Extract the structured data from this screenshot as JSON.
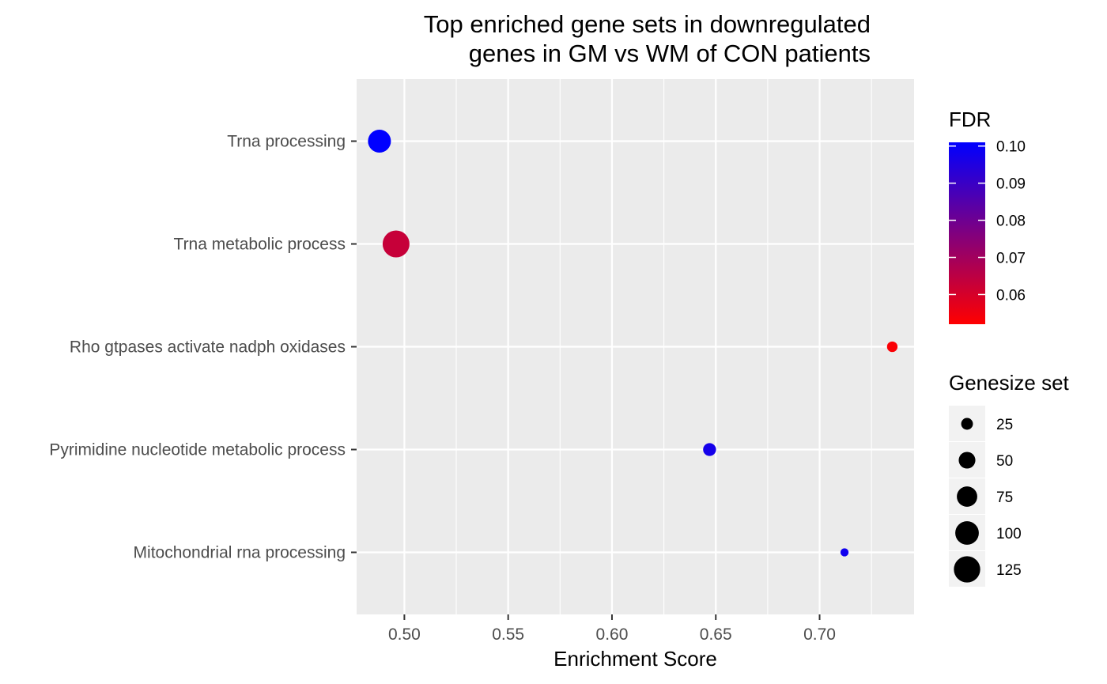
{
  "chart_data": {
    "type": "scatter",
    "title_lines": [
      "Top enriched gene sets in downregulated",
      "genes in GM vs WM of CON patients"
    ],
    "xlabel": "Enrichment Score",
    "ylabel": "",
    "xlim": [
      0.477,
      0.7455
    ],
    "x_ticks": [
      0.5,
      0.55,
      0.6,
      0.65,
      0.7
    ],
    "x_tick_labels": [
      "0.50",
      "0.55",
      "0.60",
      "0.65",
      "0.70"
    ],
    "categories": [
      "Trna processing",
      "Trna metabolic process",
      "Rho gtpases activate nadph oxidases",
      "Pyrimidine nucleotide metabolic process",
      "Mitochondrial rna processing"
    ],
    "points": [
      {
        "category": "Trna processing",
        "x": 0.488,
        "size": 95,
        "fdr": 0.101
      },
      {
        "category": "Trna metabolic process",
        "x": 0.496,
        "size": 130,
        "fdr": 0.063
      },
      {
        "category": "Rho gtpases activate nadph oxidases",
        "x": 0.735,
        "size": 20,
        "fdr": 0.053
      },
      {
        "category": "Pyrimidine nucleotide metabolic process",
        "x": 0.647,
        "size": 30,
        "fdr": 0.097
      },
      {
        "category": "Mitochondrial rna processing",
        "x": 0.712,
        "size": 12,
        "fdr": 0.098
      }
    ],
    "grid": true,
    "color_legend": {
      "title": "FDR",
      "range": [
        0.052,
        0.101
      ],
      "low_color": "#ff0000",
      "high_color": "#0000ff",
      "ticks": [
        0.06,
        0.07,
        0.08,
        0.09,
        0.1
      ],
      "tick_labels": [
        "0.06",
        "0.07",
        "0.08",
        "0.09",
        "0.10"
      ]
    },
    "size_legend": {
      "title": "Genesize set",
      "values": [
        25,
        50,
        75,
        100,
        125
      ],
      "labels": [
        "25",
        "50",
        "75",
        "100",
        "125"
      ]
    },
    "legend_placement": "right",
    "colors": {
      "panel_background": "#ebebeb",
      "grid": "#ffffff",
      "legend_key_background": "#f2f2f2",
      "size_key_fill": "#000000"
    }
  }
}
